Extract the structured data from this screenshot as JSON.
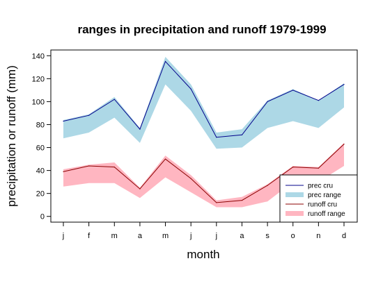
{
  "chart_data": {
    "type": "line",
    "title": "ranges in precipitation and runoff 1979-1999",
    "xlabel": "month",
    "ylabel": "precipitation or runoff (mm)",
    "categories": [
      "j",
      "f",
      "m",
      "a",
      "m",
      "j",
      "j",
      "a",
      "s",
      "o",
      "n",
      "d"
    ],
    "ylim": [
      -5,
      145
    ],
    "yticks": [
      0,
      20,
      40,
      60,
      80,
      100,
      120,
      140
    ],
    "legend_position": "bottom-right",
    "series": [
      {
        "name": "prec cru",
        "kind": "line",
        "color": "#00008b",
        "values": [
          83,
          88,
          102,
          76,
          135,
          111,
          69,
          71,
          100,
          110,
          101,
          115
        ]
      },
      {
        "name": "prec range",
        "kind": "range",
        "color": "#add8e6",
        "low": [
          68,
          73,
          86,
          64,
          115,
          92,
          59,
          60,
          77,
          83,
          77,
          95
        ],
        "high": [
          84,
          89,
          104,
          77,
          139,
          115,
          73,
          76,
          101,
          111,
          101,
          116
        ]
      },
      {
        "name": "runoff cru",
        "kind": "line",
        "color": "#8b0000",
        "values": [
          39,
          44,
          43,
          24,
          50,
          33,
          12,
          14,
          27,
          43,
          42,
          63
        ]
      },
      {
        "name": "runoff range",
        "kind": "range",
        "color": "#ffb6c1",
        "low": [
          26,
          29,
          29,
          16,
          34,
          21,
          8,
          8,
          13,
          30,
          30,
          44
        ],
        "high": [
          41,
          45,
          47,
          25,
          53,
          36,
          14,
          17,
          28,
          44,
          43,
          64
        ]
      }
    ]
  }
}
